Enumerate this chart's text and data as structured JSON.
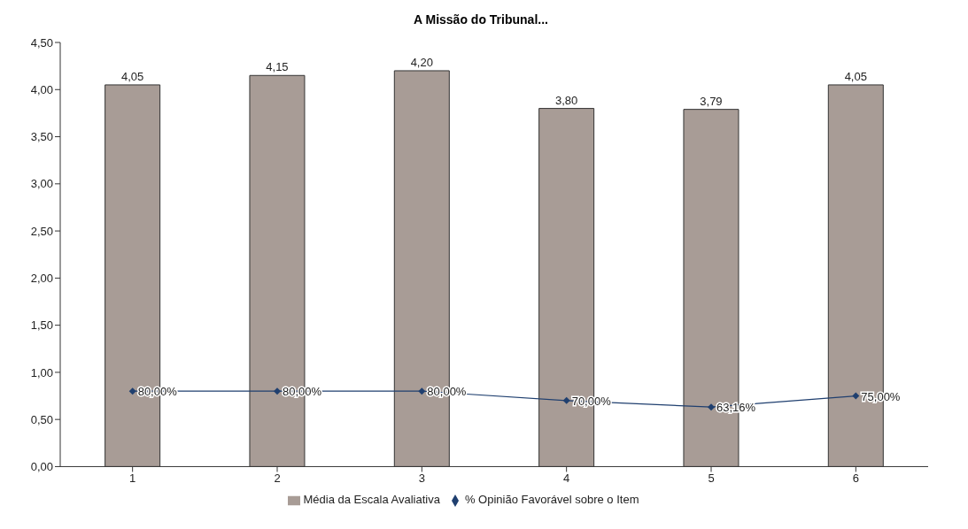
{
  "chart_data": {
    "type": "bar",
    "title": "A Missão do Tribunal...",
    "categories": [
      "1",
      "2",
      "3",
      "4",
      "5",
      "6"
    ],
    "series": [
      {
        "name": "Média da Escala Avaliativa",
        "color": "#a89c96",
        "values": [
          4.05,
          4.15,
          4.2,
          3.8,
          3.79,
          4.05
        ],
        "value_labels": [
          "4,05",
          "4,15",
          "4,20",
          "3,80",
          "3,79",
          "4,05"
        ]
      },
      {
        "name": "% Opinião Favorável sobre o Item",
        "type": "line",
        "color": "#1f3f6f",
        "marker": "diamond",
        "values": [
          0.8,
          0.8,
          0.8,
          0.7,
          0.6316,
          0.75
        ],
        "value_labels": [
          "80,00%",
          "80,00%",
          "80,00%",
          "70,00%",
          "63,16%",
          "75,00%"
        ]
      }
    ],
    "ylim": [
      0,
      4.5
    ],
    "yticks": [
      {
        "value": 0,
        "label": "0,00"
      },
      {
        "value": 0.5,
        "label": "0,50"
      },
      {
        "value": 1,
        "label": "1,00"
      },
      {
        "value": 1.5,
        "label": "1,50"
      },
      {
        "value": 2,
        "label": "2,00"
      },
      {
        "value": 2.5,
        "label": "2,50"
      },
      {
        "value": 3,
        "label": "3,00"
      },
      {
        "value": 3.5,
        "label": "3,50"
      },
      {
        "value": 4,
        "label": "4,00"
      },
      {
        "value": 4.5,
        "label": "4,50"
      }
    ],
    "grid": false,
    "legend": "bottom"
  }
}
